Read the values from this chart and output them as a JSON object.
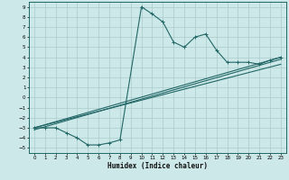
{
  "xlabel": "Humidex (Indice chaleur)",
  "bg_color": "#cce8e8",
  "grid_color": "#aacaca",
  "line_color": "#226666",
  "xlim": [
    -0.5,
    23.5
  ],
  "ylim": [
    -5.5,
    9.5
  ],
  "xticks": [
    0,
    1,
    2,
    3,
    4,
    5,
    6,
    7,
    8,
    9,
    10,
    11,
    12,
    13,
    14,
    15,
    16,
    17,
    18,
    19,
    20,
    21,
    22,
    23
  ],
  "yticks": [
    -5,
    -4,
    -3,
    -2,
    -1,
    0,
    1,
    2,
    3,
    4,
    5,
    6,
    7,
    8,
    9
  ],
  "series1_x": [
    0,
    1,
    2,
    3,
    4,
    5,
    6,
    7,
    8,
    10,
    11,
    12,
    13,
    14,
    15,
    16,
    17,
    18,
    19,
    20,
    21,
    22,
    23
  ],
  "series1_y": [
    -3,
    -3,
    -3,
    -3.5,
    -4,
    -4.7,
    -4.7,
    -4.5,
    -4.2,
    9,
    8.3,
    7.5,
    5.5,
    5.0,
    6.0,
    6.3,
    4.7,
    3.5,
    3.5,
    3.5,
    3.3,
    3.7,
    4.0
  ],
  "series2_x": [
    0,
    23
  ],
  "series2_y": [
    -3.0,
    4.0
  ],
  "series3_x": [
    0,
    23
  ],
  "series3_y": [
    -3.0,
    3.3
  ],
  "series4_x": [
    0,
    23
  ],
  "series4_y": [
    -3.2,
    3.8
  ]
}
